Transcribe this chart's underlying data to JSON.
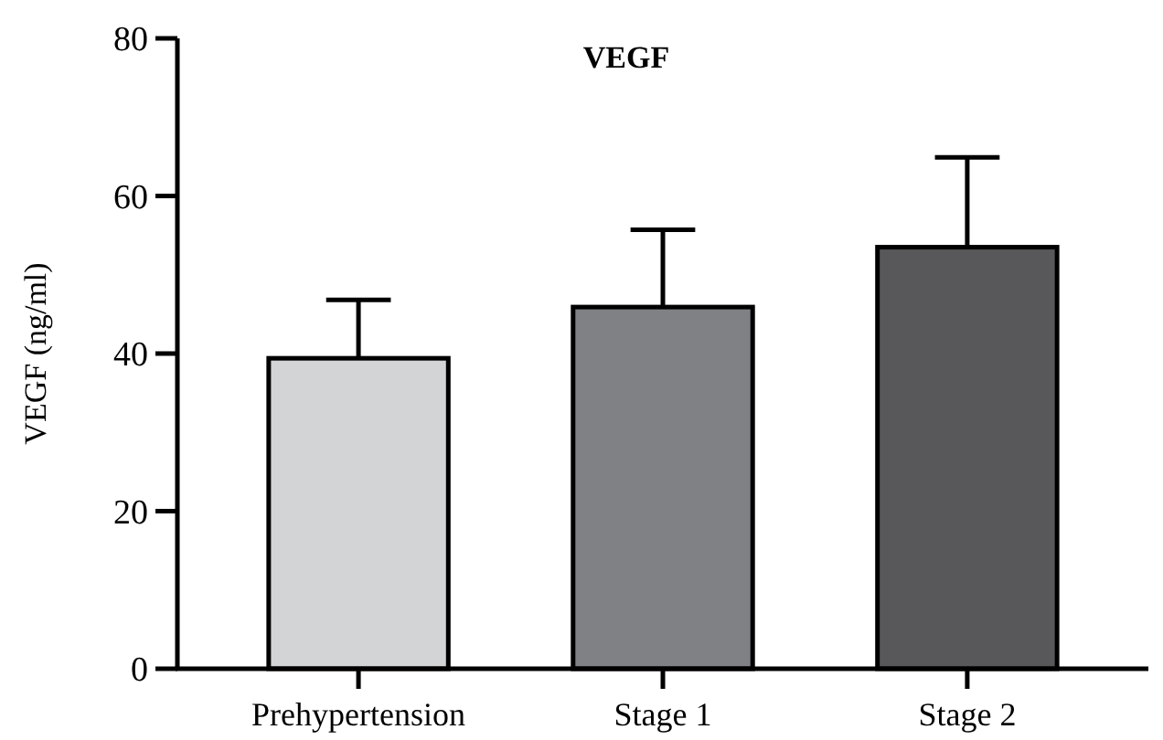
{
  "chart_data": {
    "type": "bar",
    "title": "VEGF",
    "ylabel": "VEGF (ng/ml)",
    "categories": [
      "Prehypertension",
      "Stage 1",
      "Stage 2"
    ],
    "values": [
      39.4,
      45.9,
      53.5
    ],
    "colors": [
      "#d3d4d6",
      "#808185",
      "#58585a"
    ],
    "errors": [
      [
        39.4,
        46.8
      ],
      [
        45.9,
        55.7
      ],
      [
        53.5,
        64.9
      ]
    ],
    "ylim": [
      0,
      80
    ],
    "yticks": [
      0,
      20,
      40,
      60,
      80
    ]
  }
}
